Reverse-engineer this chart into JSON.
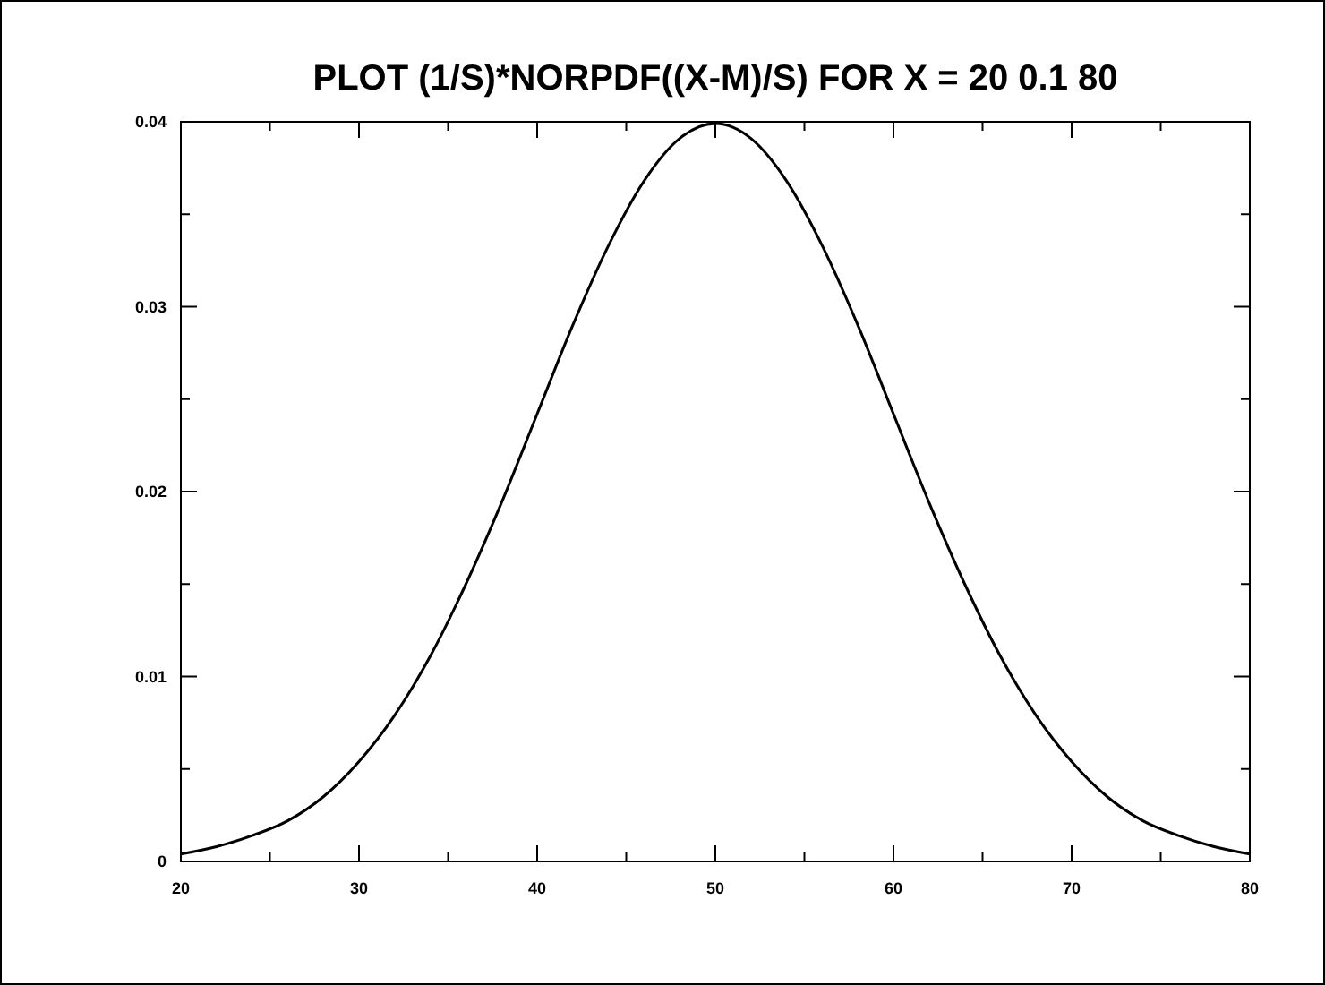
{
  "chart_data": {
    "type": "line",
    "title": "PLOT (1/S)*NORPDF((X-M)/S) FOR X = 20 0.1 80",
    "x": [
      20,
      22,
      24,
      26,
      28,
      30,
      32,
      34,
      36,
      38,
      40,
      42,
      44,
      46,
      48,
      50,
      52,
      54,
      56,
      58,
      60,
      62,
      64,
      66,
      68,
      70,
      72,
      74,
      76,
      78,
      80
    ],
    "series": [
      {
        "color": "#000000",
        "values": [
          0.0004,
          0.0008,
          0.0014,
          0.0022,
          0.0035,
          0.0054,
          0.0079,
          0.0111,
          0.015,
          0.0194,
          0.0242,
          0.029,
          0.0333,
          0.0368,
          0.0391,
          0.0399,
          0.0391,
          0.0368,
          0.0333,
          0.029,
          0.0242,
          0.0194,
          0.015,
          0.0111,
          0.0079,
          0.0054,
          0.0035,
          0.0022,
          0.0014,
          0.0008,
          0.0004
        ]
      }
    ],
    "xlim": [
      20,
      80
    ],
    "ylim": [
      0,
      0.04
    ],
    "xticks": [
      20,
      {
        "value": 25,
        "label": null
      },
      30,
      {
        "value": 35,
        "label": null
      },
      40,
      {
        "value": 45,
        "label": null
      },
      50,
      {
        "value": 55,
        "label": null
      },
      60,
      {
        "value": 65,
        "label": null
      },
      70,
      {
        "value": 75,
        "label": null
      },
      80
    ],
    "yticks": [
      0,
      {
        "value": 0.005,
        "label": null
      },
      0.01,
      {
        "value": 0.015,
        "label": null
      },
      0.02,
      {
        "value": 0.025,
        "label": null
      },
      0.03,
      {
        "value": 0.035,
        "label": null
      },
      0.04
    ],
    "marker": "none",
    "line_style": "solid"
  }
}
